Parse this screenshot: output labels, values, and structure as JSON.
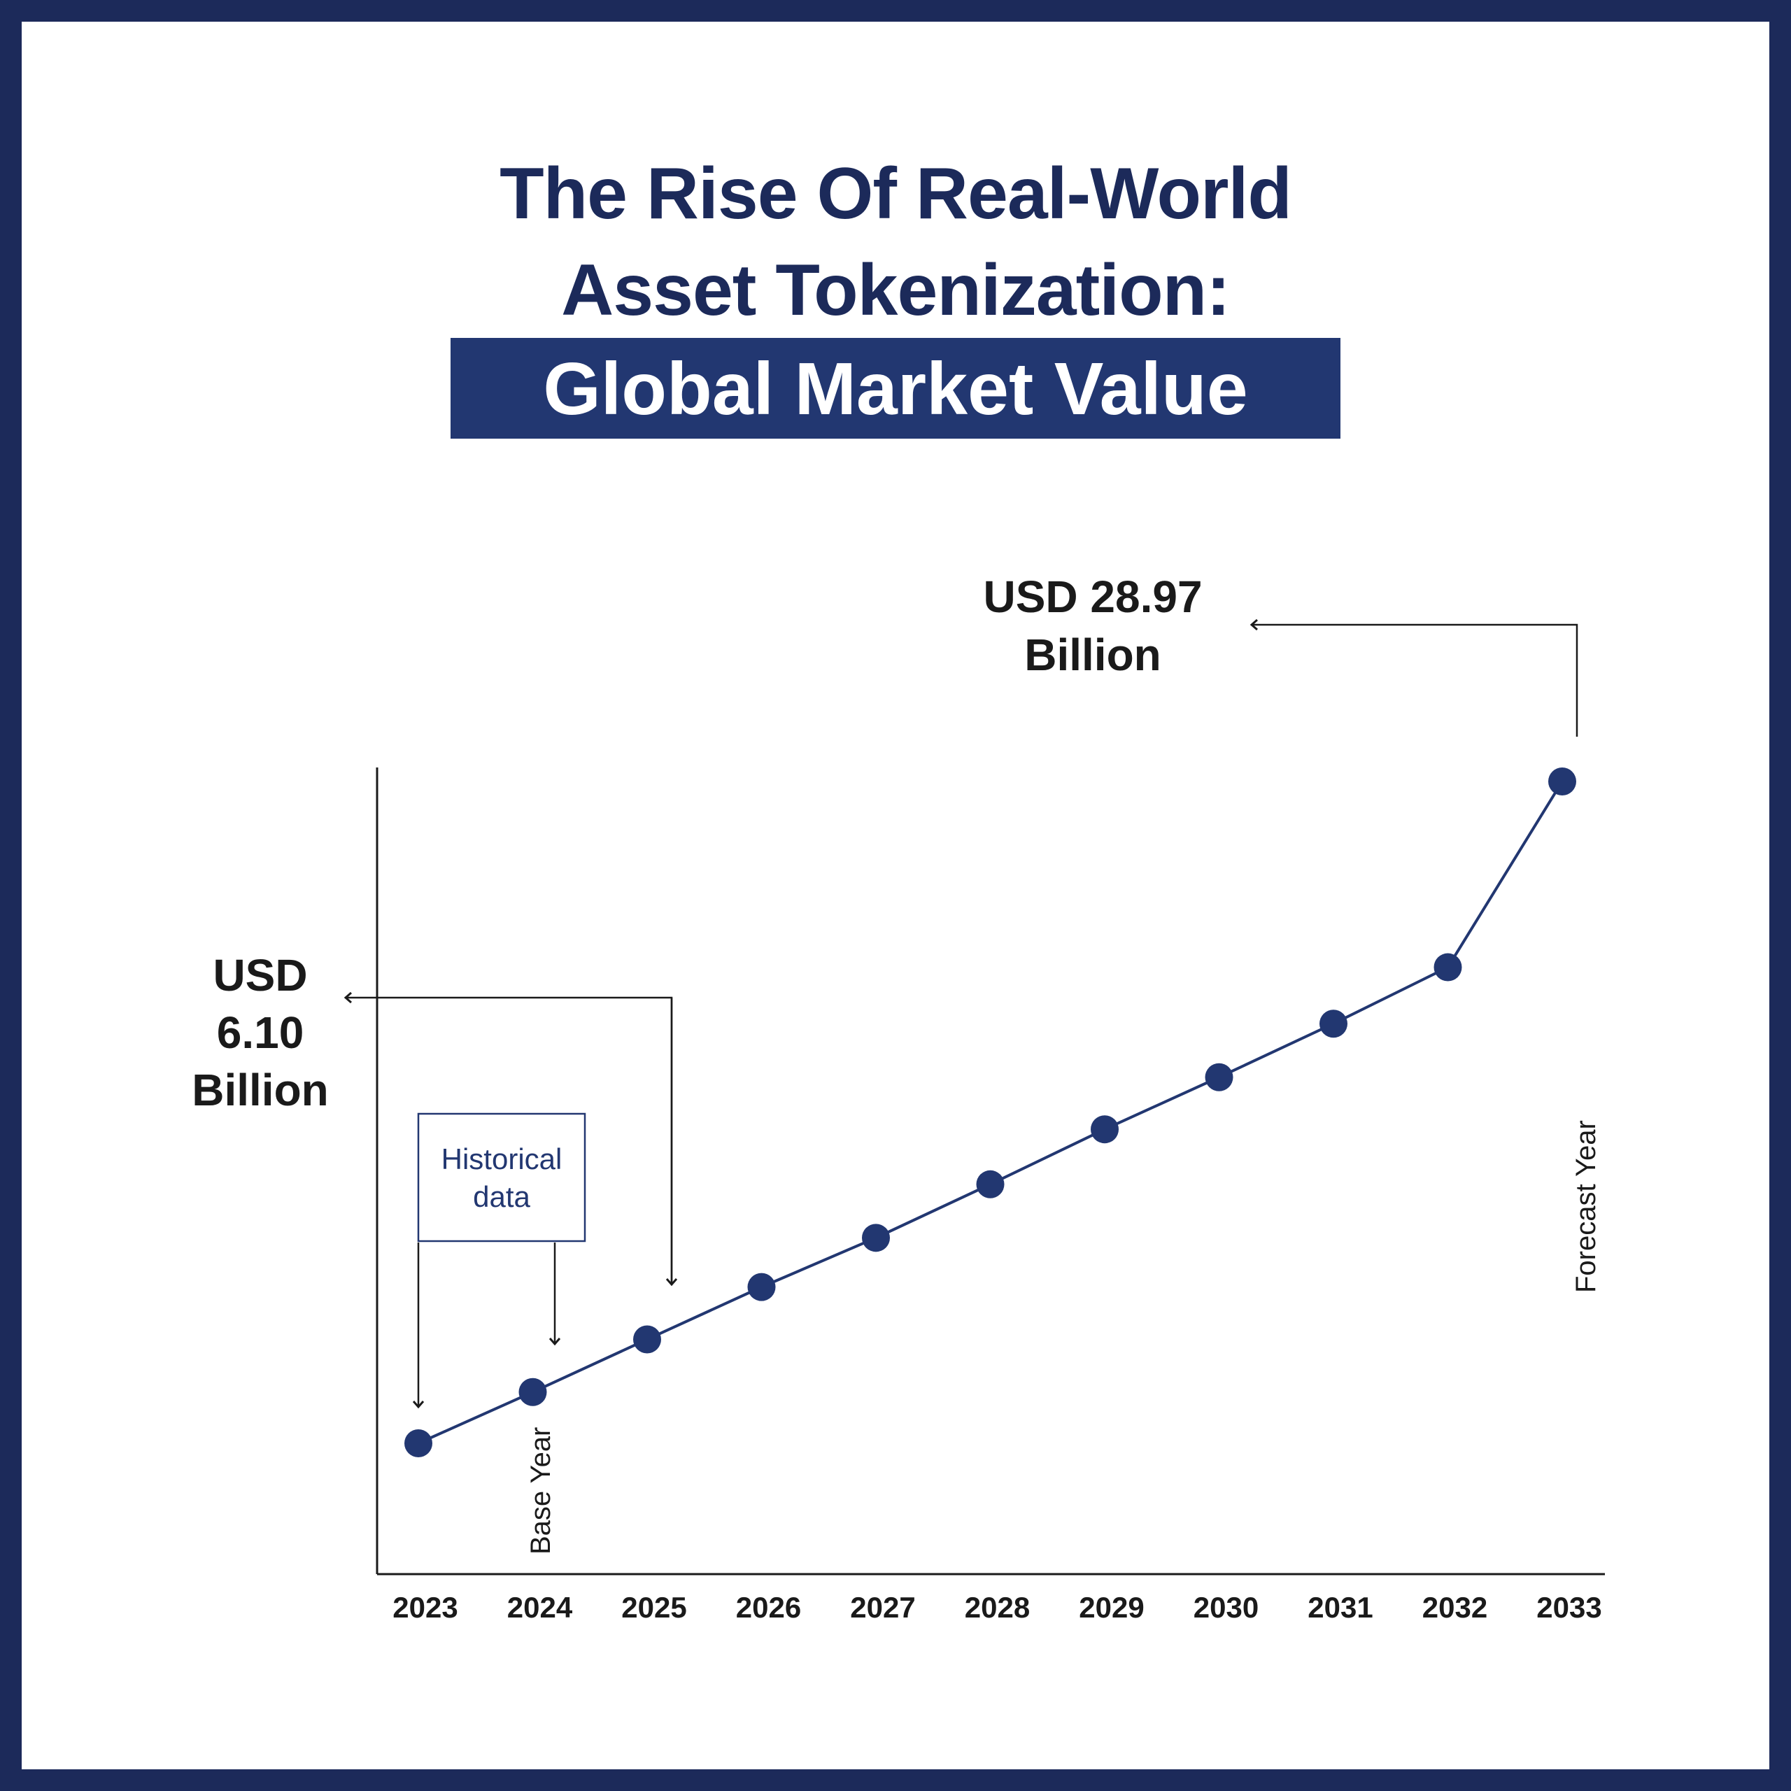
{
  "title": {
    "line1": "The Rise Of Real-World",
    "line2": "Asset Tokenization:",
    "line3": "Global Market Value"
  },
  "colors": {
    "border": "#1c2a5a",
    "accent": "#223771",
    "line": "#223771",
    "text": "#1a1a1a"
  },
  "annotations": {
    "start_value": [
      "USD",
      "6.10",
      "Billion"
    ],
    "end_value": [
      "USD 28.97",
      "Billion"
    ],
    "historical_box": [
      "Historical",
      "data"
    ],
    "base_year_label": "Base Year",
    "forecast_year_label": "Forecast Year"
  },
  "chart_data": {
    "type": "line",
    "x": [
      "2023",
      "2024",
      "2025",
      "2026",
      "2027",
      "2028",
      "2029",
      "2030",
      "2031",
      "2032",
      "2033"
    ],
    "series": [
      {
        "values": [
          6.1,
          7.87,
          9.69,
          11.5,
          13.2,
          15.05,
          16.95,
          18.75,
          20.6,
          22.55,
          28.97
        ]
      }
    ],
    "markers": true,
    "grid": false,
    "legend": "none",
    "title": "The Rise Of Real-World Asset Tokenization: Global Market Value",
    "xlabel": "",
    "ylabel": ""
  }
}
